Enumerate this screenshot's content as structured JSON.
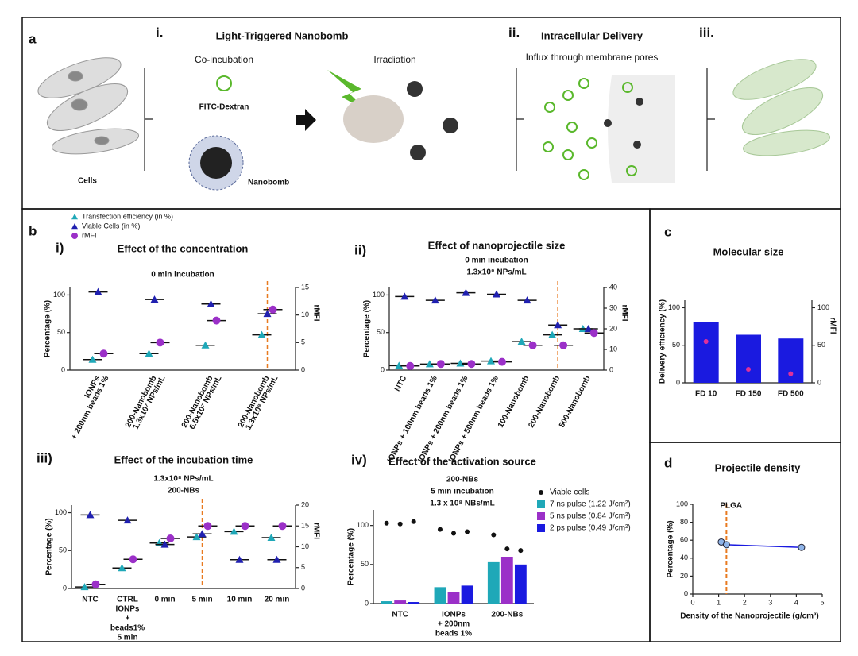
{
  "panel_a": {
    "letter": "a",
    "step1": "i.",
    "title1": "Light-Triggered Nanobomb",
    "coinc": "Co-incubation",
    "fitc": "FITC-Dextran",
    "nanobomb": "Nanobomb",
    "irradiation": "Irradiation",
    "cells": "Cells",
    "step2": "ii.",
    "title2": "Intracellular Delivery",
    "influx": "Influx through membrane pores",
    "step3": "iii."
  },
  "panel_letters": [
    "b",
    "c",
    "d"
  ],
  "chart_data": [
    {
      "type": "dot",
      "panel": "i)",
      "title": "Effect of the concentration",
      "subtitle": [
        "0 min incubation"
      ],
      "categories": [
        [
          "IONPs",
          "+ 200nm beads 1%"
        ],
        [
          "200-Nanobomb",
          "1.3x10⁷ NPs/mL"
        ],
        [
          "200-Nanobomb",
          "6.5x10⁷ NPs/mL"
        ],
        [
          "200-Nanobomb",
          "1.3x10⁸ NPs/mL"
        ]
      ],
      "ylabel": "Percentage (%)",
      "y2label": "rMFI",
      "ylim": [
        0,
        110
      ],
      "yticks": [
        0,
        50,
        100
      ],
      "y2lim": [
        0,
        15
      ],
      "y2ticks": [
        0,
        5,
        10,
        15
      ],
      "highlight": 3,
      "series": [
        {
          "name": "Transfection efficiency (in %)",
          "color": "#1fa8b8",
          "marker": "triangle",
          "values": [
            14,
            22,
            33,
            47
          ]
        },
        {
          "name": "Viable Cells (in %)",
          "color": "#2020b0",
          "marker": "triangle",
          "values": [
            104,
            94,
            88,
            75
          ]
        },
        {
          "name": "rMFI",
          "color": "#9b30c8",
          "marker": "circle",
          "axis": "y2",
          "values": [
            3,
            5,
            9,
            11
          ]
        }
      ]
    },
    {
      "type": "dot",
      "panel": "ii)",
      "title": "Effect of nanoprojectile size",
      "subtitle": [
        "0 min incubation",
        "1.3x10⁸ NPs/mL"
      ],
      "categories": [
        [
          "NTC"
        ],
        [
          "IONPs + 100nm beads 1%"
        ],
        [
          "IONPs + 200nm beads 1%"
        ],
        [
          "IONPs + 500nm beads 1%"
        ],
        [
          "100-Nanobomb"
        ],
        [
          "200-Nanobomb"
        ],
        [
          "500-Nanobomb"
        ]
      ],
      "ylabel": "Percentage (%)",
      "y2label": "rMFI",
      "ylim": [
        0,
        110
      ],
      "yticks": [
        0,
        50,
        100
      ],
      "y2lim": [
        0,
        40
      ],
      "y2ticks": [
        0,
        10,
        20,
        30,
        40
      ],
      "highlight": 5,
      "series": [
        {
          "color": "#1fa8b8",
          "marker": "triangle",
          "values": [
            6,
            8,
            9,
            12,
            38,
            47,
            55
          ]
        },
        {
          "color": "#2020b0",
          "marker": "triangle",
          "values": [
            98,
            93,
            103,
            101,
            93,
            60,
            55
          ]
        },
        {
          "color": "#9b30c8",
          "marker": "circle",
          "axis": "y2",
          "values": [
            2,
            3,
            3,
            4,
            12,
            12,
            18
          ]
        }
      ]
    },
    {
      "type": "dot",
      "panel": "iii)",
      "title": "Effect of the incubation time",
      "subtitle": [
        "1.3x10⁸ NPs/mL",
        "200-NBs"
      ],
      "categories": [
        [
          "NTC"
        ],
        [
          "CTRL",
          "IONPs",
          "+",
          "beads1%",
          "5 min"
        ],
        [
          "0 min"
        ],
        [
          "5 min"
        ],
        [
          "10 min"
        ],
        [
          "20 min"
        ]
      ],
      "ylabel": "Percentage (%)",
      "y2label": "rMFI",
      "ylim": [
        0,
        110
      ],
      "yticks": [
        0,
        50,
        100
      ],
      "y2lim": [
        0,
        20
      ],
      "y2ticks": [
        0,
        5,
        10,
        15,
        20
      ],
      "highlight": 3,
      "series": [
        {
          "color": "#1fa8b8",
          "marker": "triangle",
          "values": [
            2,
            27,
            60,
            68,
            75,
            67
          ]
        },
        {
          "color": "#2020b0",
          "marker": "triangle",
          "values": [
            97,
            90,
            58,
            72,
            38,
            38
          ]
        },
        {
          "color": "#9b30c8",
          "marker": "circle",
          "axis": "y2",
          "values": [
            1,
            7,
            12,
            15,
            15,
            15
          ]
        }
      ]
    },
    {
      "type": "groupbar",
      "panel": "iv)",
      "title": "Effect of the activation source",
      "subtitle": [
        "200-NBs",
        "5 min incubation",
        "1.3 x 10⁸ NBs/mL"
      ],
      "categories": [
        [
          "NTC"
        ],
        [
          "IONPs",
          "+ 200nm",
          "beads 1%"
        ],
        [
          "200-NBs"
        ]
      ],
      "ylabel": "Percentage (%)",
      "ylim": [
        0,
        120
      ],
      "yticks": [
        0,
        50,
        100
      ],
      "viable_name": "Viable cells",
      "viable_color": "#111111",
      "series": [
        {
          "name": "7 ns pulse (1.22 J/cm²)",
          "color": "#1fa8b8",
          "values": [
            3,
            21,
            53
          ],
          "viable": [
            103,
            95,
            88
          ]
        },
        {
          "name": "5 ns pulse (0.84 J/cm²)",
          "color": "#9b30c8",
          "values": [
            4,
            15,
            60
          ],
          "viable": [
            102,
            90,
            70
          ]
        },
        {
          "name": "2 ps pulse (0.49 J/cm²)",
          "color": "#1a1ae0",
          "values": [
            2,
            23,
            50
          ],
          "viable": [
            105,
            92,
            68
          ]
        }
      ]
    },
    {
      "type": "bar",
      "title": "Molecular size",
      "categories": [
        [
          "FD 10"
        ],
        [
          "FD 150"
        ],
        [
          "FD 500"
        ]
      ],
      "values": [
        81,
        64,
        59
      ],
      "color": "#1a1ae0",
      "ylabel": "Delivery efficiency (%)",
      "y2label": "rMFI",
      "ylim": [
        0,
        110
      ],
      "yticks": [
        0,
        50,
        100
      ],
      "y2lim": [
        0,
        110
      ],
      "y2ticks": [
        0,
        50,
        100
      ],
      "y2_values": [
        55,
        18,
        12
      ],
      "y2_color": "#e0309a"
    },
    {
      "type": "line",
      "title": "Projectile density",
      "xlabel": "Density of the Nanoprojectile (g/cm³)",
      "ylabel": "Percentage (%)",
      "x": [
        1.1,
        1.3,
        4.2
      ],
      "values": [
        58,
        55,
        52
      ],
      "color": "#1a1ae0",
      "xlim": [
        0,
        5
      ],
      "xticks": [
        0,
        1,
        2,
        3,
        4,
        5
      ],
      "ylim": [
        0,
        100
      ],
      "yticks": [
        0,
        20,
        40,
        60,
        80,
        100
      ],
      "vline": 1.3,
      "vline_label": "PLGA"
    }
  ]
}
